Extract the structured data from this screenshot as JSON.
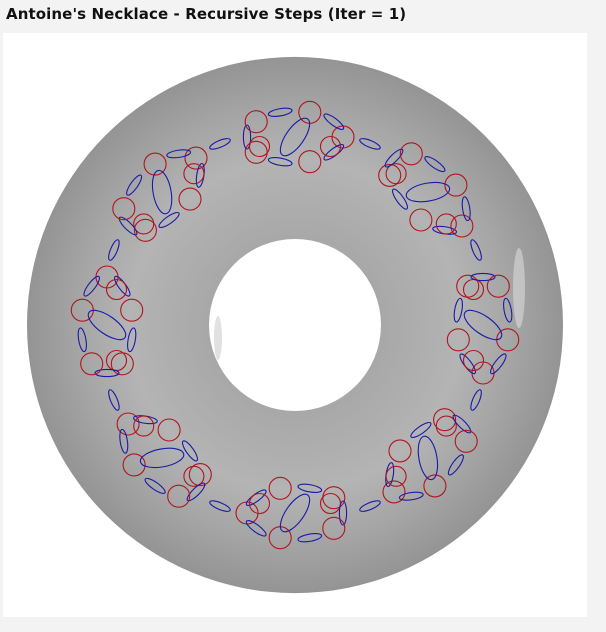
{
  "title": "Antoine's Necklace - Recursive Steps (Iter = 1)",
  "colors": {
    "background": "#f3f3f3",
    "canvas": "#ffffff",
    "torus_fill": "#a8a8a8",
    "ring_red": "#b0141e",
    "ring_blue": "#1a1aa8"
  }
}
